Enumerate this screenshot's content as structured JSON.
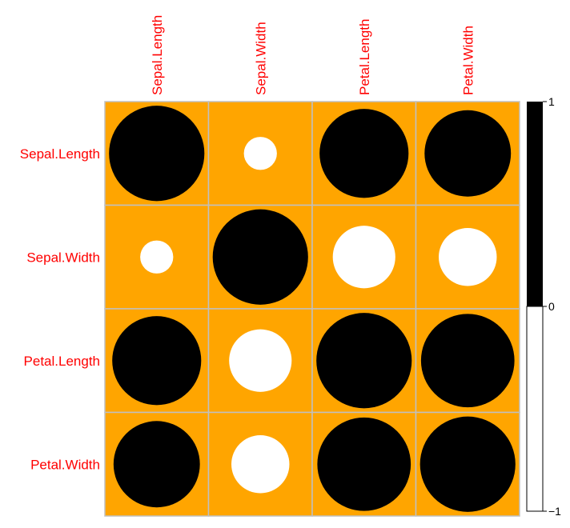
{
  "chart_data": {
    "type": "heatmap",
    "style": "correlation-circles",
    "variables": [
      "Sepal.Length",
      "Sepal.Width",
      "Petal.Length",
      "Petal.Width"
    ],
    "matrix": [
      [
        1.0,
        -0.12,
        0.87,
        0.82
      ],
      [
        -0.12,
        1.0,
        -0.43,
        -0.37
      ],
      [
        0.87,
        -0.43,
        1.0,
        0.96
      ],
      [
        0.82,
        -0.37,
        0.96,
        1.0
      ]
    ],
    "colorbar": {
      "ticks": [
        "1",
        "0",
        "−1"
      ],
      "range": [
        -1,
        1
      ],
      "positive_color": "#000000",
      "negative_color": "#ffffff"
    },
    "colors": {
      "background": "#ffa500",
      "grid": "#c0c0c0",
      "label": "#ff0000"
    }
  }
}
